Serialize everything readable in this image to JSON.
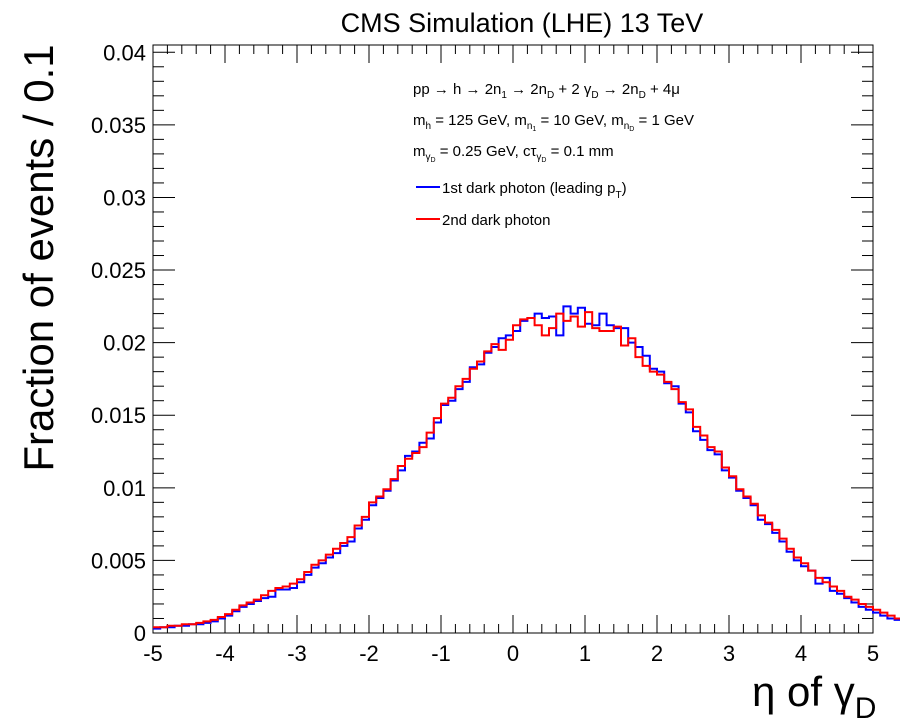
{
  "chart_data": {
    "type": "line",
    "title": "CMS Simulation (LHE) 13 TeV",
    "xlabel_main": "η of γ",
    "xlabel_sub": "D",
    "ylabel": "Fraction of events / 0.1",
    "xlim": [
      -5,
      5
    ],
    "ylim": [
      0,
      0.0405
    ],
    "x_ticks": [
      "-5",
      "-4",
      "-3",
      "-2",
      "-1",
      "0",
      "1",
      "2",
      "3",
      "4",
      "5"
    ],
    "y_ticks": [
      "0",
      "0.005",
      "0.01",
      "0.015",
      "0.02",
      "0.025",
      "0.03",
      "0.035",
      "0.04"
    ],
    "grid": false,
    "legend_position": "top-right",
    "annotations": {
      "process": {
        "t1": "pp → h → 2n",
        "s1": "1",
        "t2": " → 2n",
        "s2": "D",
        "t3": " + 2 γ",
        "s3": "D",
        "t4": " → 2n",
        "s4": "D",
        "t5": " + 4μ"
      },
      "masses": {
        "t1": "m",
        "s1": "h",
        "t2": " = 125 GeV, m",
        "s2": "n",
        "s2b": "1",
        "t3": " = 10 GeV, m",
        "s3": "n",
        "s3b": "D",
        "t4": " = 1 GeV"
      },
      "darkphoton": {
        "t1": "m",
        "s1": "γ",
        "s1b": "D",
        "t2": " = 0.25 GeV, cτ",
        "s2": "γ",
        "s2b": "D",
        "t3": " = 0.1 mm"
      }
    },
    "legend": [
      {
        "main": "1st dark photon (leading p",
        "sub": "T",
        "tail": ")",
        "color": "#0000ff"
      },
      {
        "main": "2nd dark photon",
        "sub": "",
        "tail": "",
        "color": "#ff0000"
      }
    ],
    "bin_edges_start": -5.0,
    "bin_width": 0.1,
    "series": [
      {
        "name": "1st dark photon (leading pT)",
        "color": "#0000ff",
        "values": [
          0.0003,
          0.0004,
          0.0004,
          0.0005,
          0.0005,
          0.0006,
          0.0006,
          0.0007,
          0.0008,
          0.001,
          0.0012,
          0.0015,
          0.0018,
          0.002,
          0.0022,
          0.0024,
          0.0025,
          0.003,
          0.003,
          0.0031,
          0.0035,
          0.004,
          0.0045,
          0.0048,
          0.0052,
          0.0055,
          0.006,
          0.0063,
          0.0072,
          0.0078,
          0.0088,
          0.0093,
          0.0098,
          0.0105,
          0.0112,
          0.0122,
          0.0125,
          0.0131,
          0.0134,
          0.0145,
          0.0157,
          0.016,
          0.0168,
          0.0173,
          0.0183,
          0.0185,
          0.0193,
          0.0197,
          0.0203,
          0.0205,
          0.0208,
          0.0215,
          0.0217,
          0.022,
          0.0217,
          0.0218,
          0.0205,
          0.0225,
          0.022,
          0.0224,
          0.0213,
          0.0212,
          0.022,
          0.0212,
          0.021,
          0.021,
          0.02,
          0.0197,
          0.0191,
          0.0182,
          0.018,
          0.0172,
          0.017,
          0.0158,
          0.0152,
          0.0139,
          0.0133,
          0.0126,
          0.0123,
          0.0112,
          0.0107,
          0.0098,
          0.0093,
          0.0088,
          0.0078,
          0.0075,
          0.0069,
          0.0063,
          0.0056,
          0.005,
          0.0046,
          0.0043,
          0.0034,
          0.0038,
          0.0029,
          0.0027,
          0.0024,
          0.0021,
          0.0018,
          0.0016,
          0.0014,
          0.0012,
          0.001,
          0.0009,
          0.0007,
          0.0006,
          0.0006,
          0.0005,
          0.0004,
          0.0004
        ]
      },
      {
        "name": "2nd dark photon",
        "color": "#ff0000",
        "values": [
          0.0004,
          0.0004,
          0.0005,
          0.0005,
          0.0006,
          0.0006,
          0.0007,
          0.0008,
          0.0009,
          0.0011,
          0.0013,
          0.0016,
          0.0019,
          0.0021,
          0.0023,
          0.0026,
          0.0029,
          0.0031,
          0.0032,
          0.0034,
          0.0037,
          0.0042,
          0.0047,
          0.005,
          0.0054,
          0.0058,
          0.0062,
          0.0066,
          0.0074,
          0.008,
          0.009,
          0.0094,
          0.0099,
          0.0106,
          0.0115,
          0.012,
          0.0124,
          0.0128,
          0.0138,
          0.0148,
          0.0158,
          0.0162,
          0.017,
          0.0175,
          0.0182,
          0.0187,
          0.0194,
          0.0199,
          0.0195,
          0.0202,
          0.0212,
          0.0216,
          0.0217,
          0.0212,
          0.0205,
          0.021,
          0.022,
          0.0215,
          0.0218,
          0.0211,
          0.0221,
          0.021,
          0.0208,
          0.0208,
          0.0211,
          0.0198,
          0.0203,
          0.019,
          0.0184,
          0.018,
          0.0178,
          0.0173,
          0.0168,
          0.0159,
          0.0154,
          0.0142,
          0.0136,
          0.0128,
          0.0125,
          0.0114,
          0.0108,
          0.0099,
          0.0094,
          0.0089,
          0.0081,
          0.0076,
          0.0071,
          0.0065,
          0.0058,
          0.0052,
          0.0048,
          0.0043,
          0.0038,
          0.0035,
          0.0032,
          0.0029,
          0.0025,
          0.0023,
          0.002,
          0.0018,
          0.0016,
          0.0014,
          0.0012,
          0.001,
          0.0008,
          0.0007,
          0.0006,
          0.0006,
          0.0005,
          0.0004
        ]
      }
    ]
  }
}
